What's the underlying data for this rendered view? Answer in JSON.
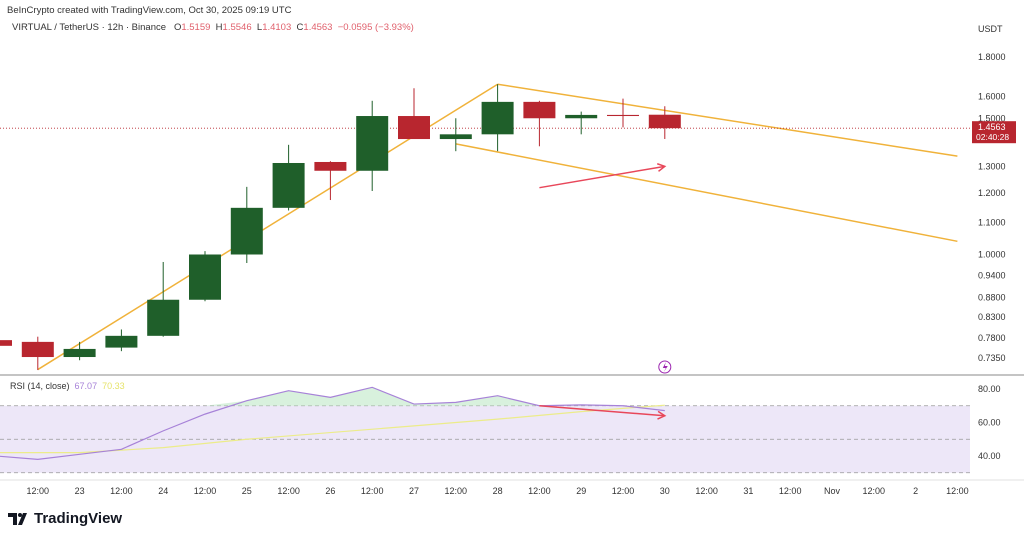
{
  "header": {
    "credit": "BeInCrypto created with TradingView.com, Oct 30, 2025 09:19 UTC",
    "symbol": "VIRTUAL / TetherUS · 12h · Binance",
    "o_label": "O",
    "o": "1.5159",
    "h_label": "H",
    "h": "1.5546",
    "l_label": "L",
    "l": "1.4103",
    "c_label": "C",
    "c": "1.4563",
    "change": "−0.0595 (−3.93%)"
  },
  "price_badge": {
    "price": "1.4563",
    "countdown": "02:40:28"
  },
  "rsi_legend": {
    "label": "RSI (14, close)",
    "rsi": "67.07",
    "ma": "70.33"
  },
  "brand": {
    "logo_text": "TradingView"
  },
  "icons": {
    "alert": "lightning-icon"
  },
  "colors": {
    "up": "#1f5f2a",
    "down": "#b8262f",
    "trendline": "#f0b23a",
    "arrow": "#e8475a",
    "rsi": "#a782d8",
    "rsi_ma": "#ecec8a",
    "band": "#ede7f8",
    "last_price": "#b8262f"
  },
  "chart_data": [
    {
      "type": "candlestick",
      "unit": "USDT",
      "yscale": "log",
      "ylim": [
        0.7,
        1.85
      ],
      "y_ticks": [
        "1.8000",
        "1.6000",
        "1.5000",
        "1.3000",
        "1.2000",
        "1.1000",
        "1.0000",
        "0.9400",
        "0.8800",
        "0.8300",
        "0.7800",
        "0.7350"
      ],
      "x_ticks": [
        {
          "t": "2025-10-22 12:00",
          "label": "12:00"
        },
        {
          "t": "2025-10-23 00:00",
          "label": "23"
        },
        {
          "t": "2025-10-23 12:00",
          "label": "12:00"
        },
        {
          "t": "2025-10-24 00:00",
          "label": "24"
        },
        {
          "t": "2025-10-24 12:00",
          "label": "12:00"
        },
        {
          "t": "2025-10-25 00:00",
          "label": "25"
        },
        {
          "t": "2025-10-25 12:00",
          "label": "12:00"
        },
        {
          "t": "2025-10-26 00:00",
          "label": "26"
        },
        {
          "t": "2025-10-26 12:00",
          "label": "12:00"
        },
        {
          "t": "2025-10-27 00:00",
          "label": "27"
        },
        {
          "t": "2025-10-27 12:00",
          "label": "12:00"
        },
        {
          "t": "2025-10-28 00:00",
          "label": "28"
        },
        {
          "t": "2025-10-28 12:00",
          "label": "12:00"
        },
        {
          "t": "2025-10-29 00:00",
          "label": "29"
        },
        {
          "t": "2025-10-29 12:00",
          "label": "12:00"
        },
        {
          "t": "2025-10-30 00:00",
          "label": "30"
        },
        {
          "t": "2025-10-30 12:00",
          "label": "12:00"
        },
        {
          "t": "2025-10-31 00:00",
          "label": "31"
        },
        {
          "t": "2025-10-31 12:00",
          "label": "12:00"
        },
        {
          "t": "2025-11-01 00:00",
          "label": "Nov"
        },
        {
          "t": "2025-11-01 12:00",
          "label": "12:00"
        },
        {
          "t": "2025-11-02 00:00",
          "label": "2"
        },
        {
          "t": "2025-11-02 12:00",
          "label": "12:00"
        }
      ],
      "candles": [
        {
          "t": "2025-10-22 00:00",
          "o": 0.775,
          "h": 0.78,
          "l": 0.76,
          "c": 0.762
        },
        {
          "t": "2025-10-22 12:00",
          "o": 0.771,
          "h": 0.783,
          "l": 0.709,
          "c": 0.737
        },
        {
          "t": "2025-10-23 00:00",
          "o": 0.737,
          "h": 0.771,
          "l": 0.73,
          "c": 0.755
        },
        {
          "t": "2025-10-23 12:00",
          "o": 0.758,
          "h": 0.8,
          "l": 0.75,
          "c": 0.785
        },
        {
          "t": "2025-10-24 00:00",
          "o": 0.785,
          "h": 0.978,
          "l": 0.783,
          "c": 0.874
        },
        {
          "t": "2025-10-24 12:00",
          "o": 0.874,
          "h": 1.01,
          "l": 0.87,
          "c": 1.0
        },
        {
          "t": "2025-10-25 00:00",
          "o": 1.0,
          "h": 1.223,
          "l": 0.975,
          "c": 1.149
        },
        {
          "t": "2025-10-25 12:00",
          "o": 1.149,
          "h": 1.386,
          "l": 1.14,
          "c": 1.313
        },
        {
          "t": "2025-10-26 00:00",
          "o": 1.317,
          "h": 1.32,
          "l": 1.176,
          "c": 1.283
        },
        {
          "t": "2025-10-26 12:00",
          "o": 1.283,
          "h": 1.58,
          "l": 1.208,
          "c": 1.51
        },
        {
          "t": "2025-10-27 00:00",
          "o": 1.51,
          "h": 1.64,
          "l": 1.41,
          "c": 1.41
        },
        {
          "t": "2025-10-27 12:00",
          "o": 1.41,
          "h": 1.5,
          "l": 1.36,
          "c": 1.43
        },
        {
          "t": "2025-10-28 00:00",
          "o": 1.43,
          "h": 1.66,
          "l": 1.36,
          "c": 1.575
        },
        {
          "t": "2025-10-28 12:00",
          "o": 1.575,
          "h": 1.58,
          "l": 1.38,
          "c": 1.5
        },
        {
          "t": "2025-10-29 00:00",
          "o": 1.5,
          "h": 1.53,
          "l": 1.43,
          "c": 1.515
        },
        {
          "t": "2025-10-29 12:00",
          "o": 1.515,
          "h": 1.59,
          "l": 1.46,
          "c": 1.51
        },
        {
          "t": "2025-10-30 00:00",
          "o": 1.5159,
          "h": 1.5546,
          "l": 1.4103,
          "c": 1.4563
        }
      ],
      "last_price": 1.4563,
      "trendlines": [
        {
          "from": {
            "t": "2025-10-22 12:00",
            "p": 0.71
          },
          "to": {
            "t": "2025-10-28 00:00",
            "p": 1.66
          }
        },
        {
          "from": {
            "t": "2025-10-28 00:00",
            "p": 1.66
          },
          "to": {
            "t": "2025-11-02 12:00",
            "p": 1.34
          }
        },
        {
          "from": {
            "t": "2025-10-27 12:00",
            "p": 1.39
          },
          "to": {
            "t": "2025-11-02 12:00",
            "p": 1.04
          }
        }
      ],
      "arrows": [
        {
          "from": {
            "t": "2025-10-28 12:00",
            "p": 1.22
          },
          "to": {
            "t": "2025-10-30 00:00",
            "p": 1.3
          }
        }
      ]
    },
    {
      "type": "line",
      "title": "RSI (14, close)",
      "ylim": [
        25,
        88
      ],
      "y_ticks": [
        "80.00",
        "60.00",
        "40.00"
      ],
      "bands": [
        30,
        50,
        70
      ],
      "series": [
        {
          "name": "RSI",
          "values": [
            {
              "t": "2025-10-22 00:00",
              "v": 40
            },
            {
              "t": "2025-10-22 12:00",
              "v": 38
            },
            {
              "t": "2025-10-23 00:00",
              "v": 41
            },
            {
              "t": "2025-10-23 12:00",
              "v": 44
            },
            {
              "t": "2025-10-24 00:00",
              "v": 55
            },
            {
              "t": "2025-10-24 12:00",
              "v": 65
            },
            {
              "t": "2025-10-25 00:00",
              "v": 73
            },
            {
              "t": "2025-10-25 12:00",
              "v": 79
            },
            {
              "t": "2025-10-26 00:00",
              "v": 75
            },
            {
              "t": "2025-10-26 12:00",
              "v": 81
            },
            {
              "t": "2025-10-27 00:00",
              "v": 71
            },
            {
              "t": "2025-10-27 12:00",
              "v": 72
            },
            {
              "t": "2025-10-28 00:00",
              "v": 76
            },
            {
              "t": "2025-10-28 12:00",
              "v": 70
            },
            {
              "t": "2025-10-29 00:00",
              "v": 70.5
            },
            {
              "t": "2025-10-29 12:00",
              "v": 70
            },
            {
              "t": "2025-10-30 00:00",
              "v": 67.07
            }
          ]
        },
        {
          "name": "MA",
          "values": [
            {
              "t": "2025-10-22 00:00",
              "v": 42
            },
            {
              "t": "2025-10-23 00:00",
              "v": 42
            },
            {
              "t": "2025-10-24 00:00",
              "v": 45
            },
            {
              "t": "2025-10-25 00:00",
              "v": 50
            },
            {
              "t": "2025-10-26 00:00",
              "v": 54
            },
            {
              "t": "2025-10-27 00:00",
              "v": 58
            },
            {
              "t": "2025-10-28 00:00",
              "v": 62
            },
            {
              "t": "2025-10-29 00:00",
              "v": 66.5
            },
            {
              "t": "2025-10-30 00:00",
              "v": 70.33
            }
          ]
        }
      ],
      "arrows": [
        {
          "from": {
            "t": "2025-10-28 12:00",
            "v": 70
          },
          "to": {
            "t": "2025-10-30 00:00",
            "v": 64
          }
        }
      ]
    }
  ]
}
